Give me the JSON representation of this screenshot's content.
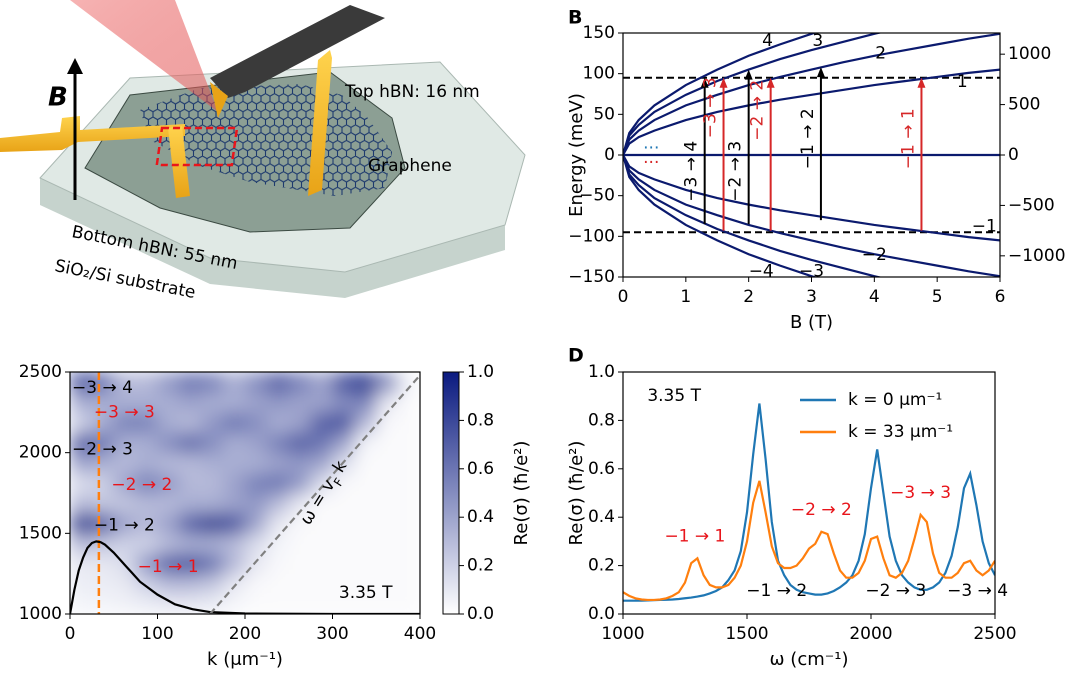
{
  "panel_a": {
    "field_label": "B",
    "top_hbn": "Top hBN: 16 nm",
    "graphene": "Graphene",
    "bottom_hbn": "Bottom hBN: 55 nm",
    "substrate": "SiO₂/Si substrate"
  },
  "chart_data": [
    {
      "type": "line",
      "panel": "B",
      "xlabel": "B (T)",
      "ylabel": "Energy (meV)",
      "xlim": [
        0,
        6
      ],
      "ylim": [
        -150,
        150
      ],
      "y2lim": [
        -1210,
        1210
      ],
      "xticks": [
        0,
        1,
        2,
        3,
        4,
        5,
        6
      ],
      "yticks": [
        {
          "value": -150,
          "label": "−150"
        },
        {
          "value": -100,
          "label": "−100"
        },
        {
          "value": -50,
          "label": "−50"
        },
        0,
        50,
        100,
        150
      ],
      "y2ticks": [
        {
          "value": -1000,
          "label": "−1000"
        },
        {
          "value": -500,
          "label": "−500"
        },
        0,
        500,
        1000
      ],
      "x": [
        0,
        0.1,
        0.25,
        0.5,
        1,
        1.5,
        2,
        2.5,
        3,
        3.5,
        4,
        4.5,
        5,
        5.5,
        6
      ],
      "series": [
        {
          "name": "4",
          "color": "#0b1a6e",
          "values": [
            0,
            27,
            43,
            61,
            86,
            105,
            122,
            136,
            149,
            161,
            172,
            182,
            192,
            202,
            211
          ]
        },
        {
          "name": "3",
          "color": "#0b1a6e",
          "values": [
            0,
            24,
            37,
            53,
            74,
            91,
            105,
            118,
            129,
            139,
            149,
            158,
            167,
            175,
            182
          ]
        },
        {
          "name": "2",
          "color": "#0b1a6e",
          "values": [
            0,
            19,
            30,
            43,
            61,
            74,
            86,
            96,
            105,
            114,
            122,
            129,
            136,
            143,
            149
          ]
        },
        {
          "name": "1",
          "color": "#0b1a6e",
          "values": [
            0,
            14,
            22,
            30,
            43,
            53,
            61,
            68,
            74,
            80,
            86,
            91,
            96,
            101,
            105
          ]
        },
        {
          "color": "#0b1a6e",
          "values": [
            0,
            0,
            0,
            0,
            0,
            0,
            0,
            0,
            0,
            0,
            0,
            0,
            0,
            0,
            0
          ]
        },
        {
          "name": "−1",
          "color": "#0b1a6e",
          "values": [
            0,
            -14,
            -22,
            -30,
            -43,
            -53,
            -61,
            -68,
            -74,
            -80,
            -86,
            -91,
            -96,
            -101,
            -105
          ]
        },
        {
          "name": "−2",
          "color": "#0b1a6e",
          "values": [
            0,
            -19,
            -30,
            -43,
            -61,
            -74,
            -86,
            -96,
            -105,
            -114,
            -122,
            -129,
            -136,
            -143,
            -149
          ]
        },
        {
          "name": "−3",
          "color": "#0b1a6e",
          "values": [
            0,
            -24,
            -37,
            -53,
            -74,
            -91,
            -105,
            -118,
            -129,
            -139,
            -149,
            -158,
            -167,
            -175,
            -182
          ]
        },
        {
          "name": "−4",
          "color": "#0b1a6e",
          "values": [
            0,
            -27,
            -43,
            -61,
            -86,
            -105,
            -122,
            -136,
            -149,
            -161,
            -172,
            -182,
            -192,
            -202,
            -211
          ]
        }
      ],
      "hlines": [
        95,
        -95
      ],
      "transitions": [
        {
          "label": "−3 → 4",
          "x": 1.3,
          "from": -85,
          "to": 95,
          "color": "#000000"
        },
        {
          "label": "−3 → 3",
          "x": 1.6,
          "from": -93,
          "to": 95,
          "color": "#d62728"
        },
        {
          "label": "−2 → 3",
          "x": 2.0,
          "from": -85,
          "to": 105,
          "color": "#000000"
        },
        {
          "label": "−2 → 2",
          "x": 2.35,
          "from": -93,
          "to": 95,
          "color": "#d62728"
        },
        {
          "label": "−1 → 2",
          "x": 3.15,
          "from": -80,
          "to": 108,
          "color": "#000000"
        },
        {
          "label": "−1 → 1",
          "x": 4.75,
          "from": -93,
          "to": 95,
          "color": "#d62728"
        }
      ],
      "annotations": [
        {
          "text": "···",
          "color": "#1f77b4"
        },
        {
          "text": "···",
          "color": "#d62728"
        }
      ]
    },
    {
      "type": "heatmap",
      "xlabel": "k (μm⁻¹)",
      "xlim": [
        0,
        400
      ],
      "ylim": [
        1000,
        2500
      ],
      "xticks": [
        0,
        100,
        200,
        300,
        400
      ],
      "yticks": [
        1000,
        1500,
        2000,
        2500
      ],
      "xbins": [
        0,
        25,
        50,
        75,
        100,
        125,
        150,
        175,
        200,
        225,
        250,
        275,
        300,
        325,
        350,
        375,
        400
      ],
      "ybins": [
        1000,
        1125,
        1250,
        1375,
        1500,
        1625,
        1750,
        1875,
        2000,
        2125,
        2250,
        2375,
        2500
      ],
      "z": [
        [
          0.05,
          0.05,
          0.06,
          0.08,
          0.1,
          0.1,
          0.08,
          0.04,
          0.02,
          0.02,
          0.02,
          0.02,
          0.02,
          0.02,
          0.02,
          0.02
        ],
        [
          0.08,
          0.08,
          0.1,
          0.2,
          0.3,
          0.3,
          0.25,
          0.1,
          0.03,
          0.02,
          0.02,
          0.02,
          0.02,
          0.02,
          0.02,
          0.02
        ],
        [
          0.1,
          0.1,
          0.15,
          0.45,
          0.7,
          0.75,
          0.6,
          0.3,
          0.1,
          0.03,
          0.02,
          0.02,
          0.02,
          0.02,
          0.02,
          0.02
        ],
        [
          0.3,
          0.25,
          0.2,
          0.2,
          0.3,
          0.35,
          0.35,
          0.3,
          0.15,
          0.05,
          0.02,
          0.02,
          0.02,
          0.02,
          0.02,
          0.02
        ],
        [
          0.85,
          0.7,
          0.4,
          0.3,
          0.4,
          0.7,
          0.85,
          0.75,
          0.4,
          0.1,
          0.03,
          0.02,
          0.02,
          0.02,
          0.02,
          0.02
        ],
        [
          0.3,
          0.25,
          0.25,
          0.3,
          0.3,
          0.35,
          0.35,
          0.4,
          0.45,
          0.3,
          0.1,
          0.02,
          0.02,
          0.02,
          0.02,
          0.02
        ],
        [
          0.15,
          0.2,
          0.4,
          0.55,
          0.45,
          0.3,
          0.3,
          0.4,
          0.55,
          0.6,
          0.45,
          0.15,
          0.03,
          0.02,
          0.02,
          0.02
        ],
        [
          0.4,
          0.35,
          0.3,
          0.35,
          0.3,
          0.3,
          0.35,
          0.35,
          0.35,
          0.4,
          0.45,
          0.4,
          0.15,
          0.02,
          0.02,
          0.02
        ],
        [
          0.7,
          0.6,
          0.35,
          0.35,
          0.5,
          0.65,
          0.5,
          0.35,
          0.4,
          0.55,
          0.7,
          0.6,
          0.4,
          0.05,
          0.02,
          0.02
        ],
        [
          0.2,
          0.35,
          0.55,
          0.55,
          0.35,
          0.3,
          0.45,
          0.6,
          0.5,
          0.35,
          0.4,
          0.7,
          0.75,
          0.3,
          0.03,
          0.02
        ],
        [
          0.35,
          0.35,
          0.35,
          0.35,
          0.35,
          0.4,
          0.35,
          0.35,
          0.4,
          0.45,
          0.4,
          0.4,
          0.5,
          0.55,
          0.1,
          0.02
        ],
        [
          0.75,
          0.6,
          0.3,
          0.3,
          0.45,
          0.6,
          0.55,
          0.35,
          0.5,
          0.7,
          0.55,
          0.4,
          0.75,
          0.85,
          0.5,
          0.05
        ]
      ],
      "cmap": [
        "#ffffff",
        "#0a1a80"
      ],
      "colorbar": {
        "label": "Re(σ) (ħ/e²)",
        "lim": [
          0,
          1
        ],
        "ticks": [
          {
            "value": 0,
            "label": "0.0"
          },
          {
            "value": 0.2,
            "label": "0.2"
          },
          {
            "value": 0.4,
            "label": "0.4"
          },
          {
            "value": 0.6,
            "label": "0.6"
          },
          {
            "value": 0.8,
            "label": "0.8"
          },
          {
            "value": 1,
            "label": "1.0"
          }
        ]
      },
      "vline": {
        "x": 33,
        "color": "#ff7f0e"
      },
      "curve": {
        "x": [
          0,
          5,
          10,
          15,
          20,
          25,
          30,
          35,
          40,
          50,
          60,
          70,
          80,
          100,
          120,
          140,
          160,
          200,
          300,
          400
        ],
        "y": [
          1000,
          1150,
          1270,
          1350,
          1410,
          1440,
          1450,
          1445,
          1430,
          1380,
          1320,
          1260,
          1200,
          1120,
          1060,
          1030,
          1012,
          1003,
          1000,
          1000
        ],
        "color": "#000000"
      },
      "diagonal": {
        "x": [
          160,
          400
        ],
        "y": [
          1000,
          2480
        ],
        "color": "#808080",
        "label_parts": [
          "ω = v",
          "F",
          " k"
        ]
      },
      "annotations": [
        {
          "text": "−3 → 4",
          "color": "#000000"
        },
        {
          "text": "−3 → 3",
          "color": "#e8151b"
        },
        {
          "text": "−2 → 3",
          "color": "#000000"
        },
        {
          "text": "−2 → 2",
          "color": "#e8151b"
        },
        {
          "text": "−1 → 2",
          "color": "#000000"
        },
        {
          "text": "−1 → 1",
          "color": "#e8151b"
        },
        {
          "text": "3.35 T",
          "color": "#000000"
        }
      ]
    },
    {
      "type": "line",
      "panel": "D",
      "xlabel": "ω (cm⁻¹)",
      "ylabel": "Re(σ) (ħ/e²)",
      "xlim": [
        1000,
        2500
      ],
      "ylim": [
        0,
        1
      ],
      "xticks": [
        1000,
        1500,
        2000,
        2500
      ],
      "yticks": [
        {
          "value": 0,
          "label": "0.0"
        },
        {
          "value": 0.2,
          "label": "0.2"
        },
        {
          "value": 0.4,
          "label": "0.4"
        },
        {
          "value": 0.6,
          "label": "0.6"
        },
        {
          "value": 0.8,
          "label": "0.8"
        },
        {
          "value": 1,
          "label": "1.0"
        }
      ],
      "legend": "upper right",
      "x": [
        1000,
        1025,
        1050,
        1075,
        1100,
        1125,
        1150,
        1175,
        1200,
        1225,
        1250,
        1275,
        1300,
        1325,
        1350,
        1375,
        1400,
        1425,
        1450,
        1475,
        1500,
        1525,
        1550,
        1575,
        1600,
        1625,
        1650,
        1675,
        1700,
        1725,
        1750,
        1775,
        1800,
        1825,
        1850,
        1875,
        1900,
        1925,
        1950,
        1975,
        2000,
        2025,
        2050,
        2075,
        2100,
        2125,
        2150,
        2175,
        2200,
        2225,
        2250,
        2275,
        2300,
        2325,
        2350,
        2375,
        2400,
        2425,
        2450,
        2475,
        2500
      ],
      "series": [
        {
          "name": "k = 0 μm⁻¹",
          "color": "#1f77b4",
          "values": [
            0.055,
            0.055,
            0.055,
            0.055,
            0.056,
            0.057,
            0.058,
            0.059,
            0.06,
            0.062,
            0.065,
            0.068,
            0.072,
            0.077,
            0.085,
            0.095,
            0.11,
            0.14,
            0.18,
            0.26,
            0.42,
            0.66,
            0.87,
            0.64,
            0.38,
            0.22,
            0.16,
            0.12,
            0.1,
            0.09,
            0.085,
            0.08,
            0.08,
            0.085,
            0.095,
            0.11,
            0.13,
            0.16,
            0.22,
            0.33,
            0.52,
            0.68,
            0.5,
            0.32,
            0.22,
            0.16,
            0.13,
            0.11,
            0.1,
            0.1,
            0.11,
            0.13,
            0.17,
            0.24,
            0.36,
            0.52,
            0.58,
            0.45,
            0.3,
            0.21,
            0.16
          ]
        },
        {
          "name": "k = 33 μm⁻¹",
          "color": "#ff7f0e",
          "values": [
            0.09,
            0.075,
            0.065,
            0.06,
            0.058,
            0.058,
            0.06,
            0.065,
            0.075,
            0.09,
            0.13,
            0.21,
            0.23,
            0.16,
            0.12,
            0.11,
            0.11,
            0.12,
            0.15,
            0.2,
            0.3,
            0.46,
            0.55,
            0.42,
            0.28,
            0.21,
            0.19,
            0.19,
            0.2,
            0.23,
            0.27,
            0.29,
            0.34,
            0.33,
            0.25,
            0.18,
            0.15,
            0.15,
            0.17,
            0.22,
            0.31,
            0.32,
            0.23,
            0.16,
            0.15,
            0.17,
            0.22,
            0.31,
            0.41,
            0.38,
            0.25,
            0.17,
            0.15,
            0.15,
            0.17,
            0.21,
            0.22,
            0.18,
            0.16,
            0.18,
            0.22
          ]
        }
      ],
      "annotations": [
        {
          "text": "3.35 T",
          "color": "#000000"
        },
        {
          "text": "−1 → 1",
          "color": "#e8151b"
        },
        {
          "text": "−2 → 2",
          "color": "#e8151b"
        },
        {
          "text": "−3 → 3",
          "color": "#e8151b"
        },
        {
          "text": "−1 → 2",
          "color": "#000000"
        },
        {
          "text": "−2 → 3",
          "color": "#000000"
        },
        {
          "text": "−3 → 4",
          "color": "#000000"
        }
      ]
    }
  ]
}
